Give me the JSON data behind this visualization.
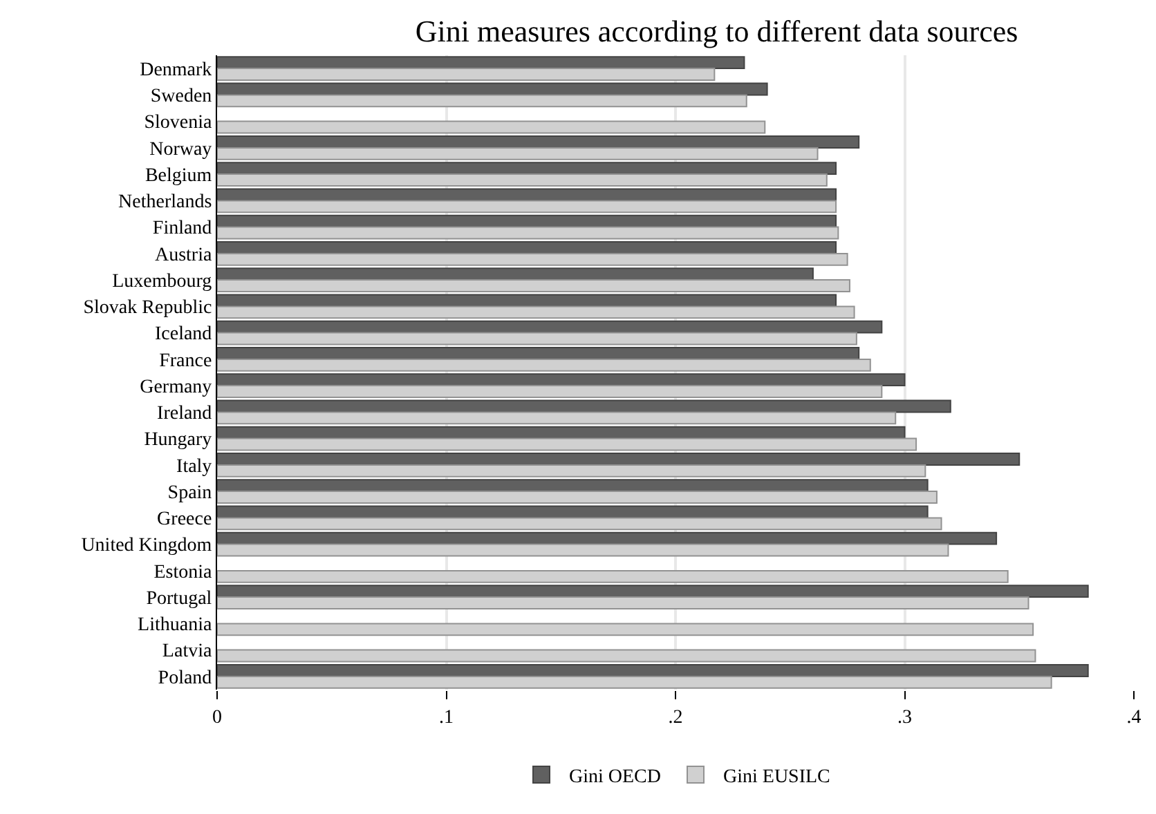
{
  "chart_data": {
    "type": "bar",
    "orientation": "horizontal",
    "title": "Gini measures according to different data sources",
    "categories": [
      "Denmark",
      "Sweden",
      "Slovenia",
      "Norway",
      "Belgium",
      "Netherlands",
      "Finland",
      "Austria",
      "Luxembourg",
      "Slovak Republic",
      "Iceland",
      "France",
      "Germany",
      "Ireland",
      "Hungary",
      "Italy",
      "Spain",
      "Greece",
      "United Kingdom",
      "Estonia",
      "Portugal",
      "Lithuania",
      "Latvia",
      "Poland"
    ],
    "series": [
      {
        "name": "Gini OECD",
        "color": "#606060",
        "values": [
          0.23,
          0.24,
          null,
          0.28,
          0.27,
          0.27,
          0.27,
          0.27,
          0.26,
          0.27,
          0.29,
          0.28,
          0.3,
          0.32,
          0.3,
          0.35,
          0.31,
          0.31,
          0.34,
          null,
          0.38,
          null,
          null,
          0.38
        ]
      },
      {
        "name": "Gini EUSILC",
        "color": "#d0d0d0",
        "values": [
          0.217,
          0.231,
          0.239,
          0.262,
          0.266,
          0.27,
          0.271,
          0.275,
          0.276,
          0.278,
          0.279,
          0.285,
          0.29,
          0.296,
          0.305,
          0.309,
          0.314,
          0.316,
          0.319,
          0.345,
          0.354,
          0.356,
          0.357,
          0.364
        ]
      }
    ],
    "xlim": [
      0,
      0.4
    ],
    "xticks": [
      {
        "value": 0,
        "label": "0"
      },
      {
        "value": 0.1,
        "label": ".1"
      },
      {
        "value": 0.2,
        "label": ".2"
      },
      {
        "value": 0.3,
        "label": ".3"
      },
      {
        "value": 0.4,
        "label": ".4"
      }
    ],
    "grid": "x",
    "legend": "bottom"
  }
}
